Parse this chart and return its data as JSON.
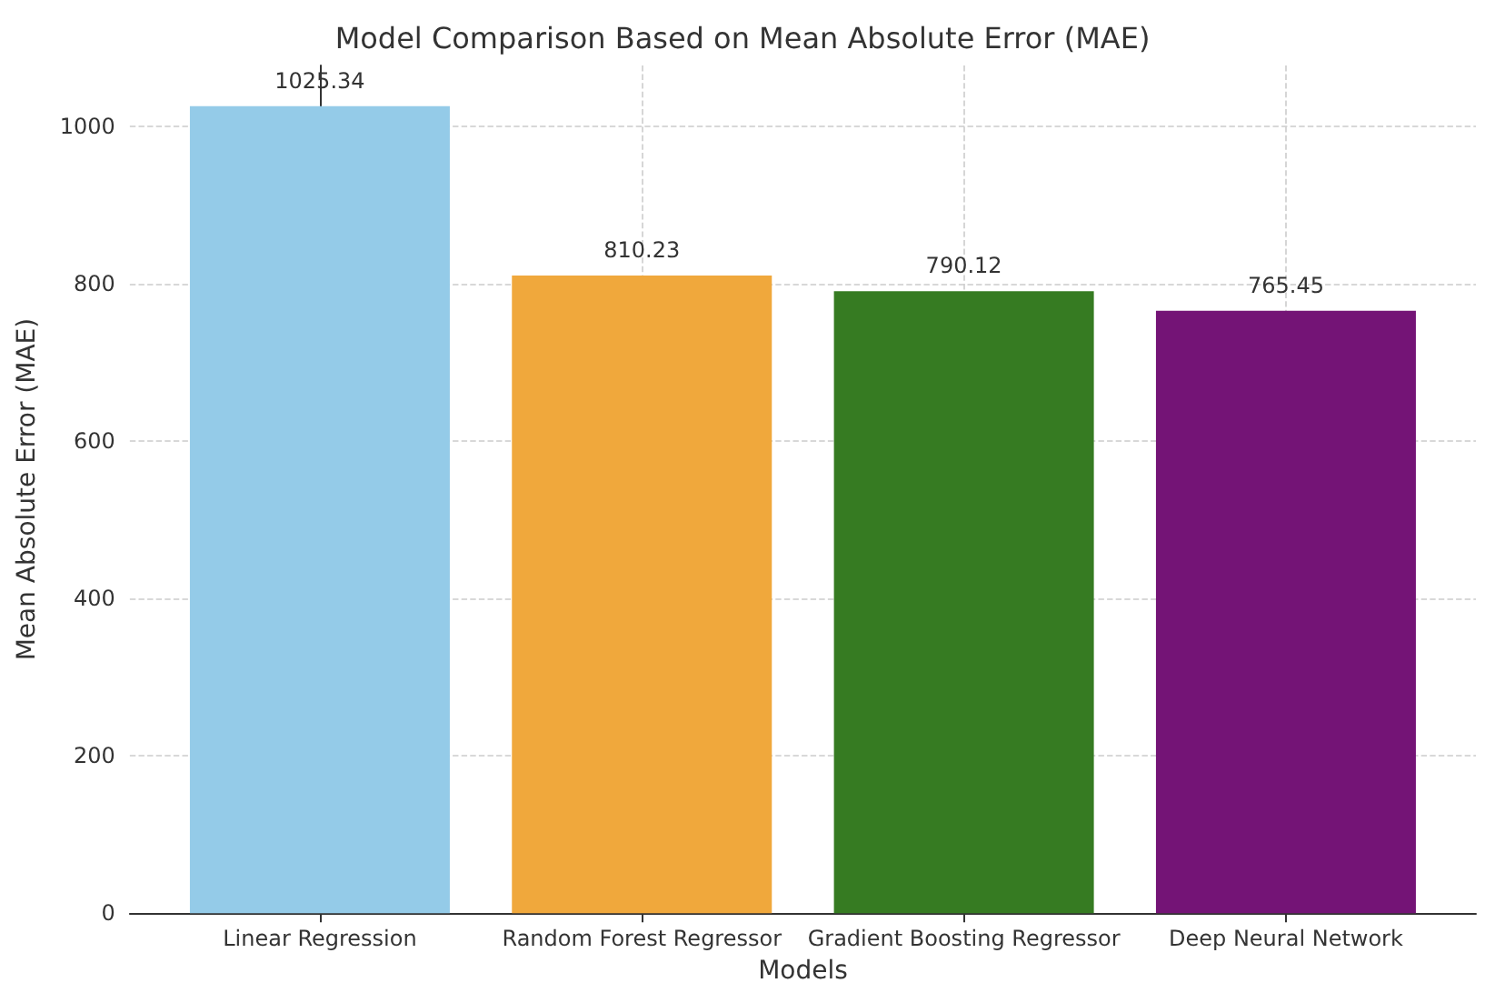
{
  "chart_data": {
    "type": "bar",
    "title": "Model Comparison Based on Mean Absolute Error (MAE)",
    "xlabel": "Models",
    "ylabel": "Mean Absolute Error (MAE)",
    "categories": [
      "Linear Regression",
      "Random Forest Regressor",
      "Gradient Boosting Regressor",
      "Deep Neural Network"
    ],
    "values": [
      1025.34,
      810.23,
      790.12,
      765.45
    ],
    "colors": [
      "#94cbe8",
      "#f0a83c",
      "#367b22",
      "#741476"
    ],
    "ylim": [
      0,
      1077
    ],
    "yticks": [
      0,
      200,
      400,
      600,
      800,
      1000
    ],
    "grid": true,
    "data_labels": true
  }
}
